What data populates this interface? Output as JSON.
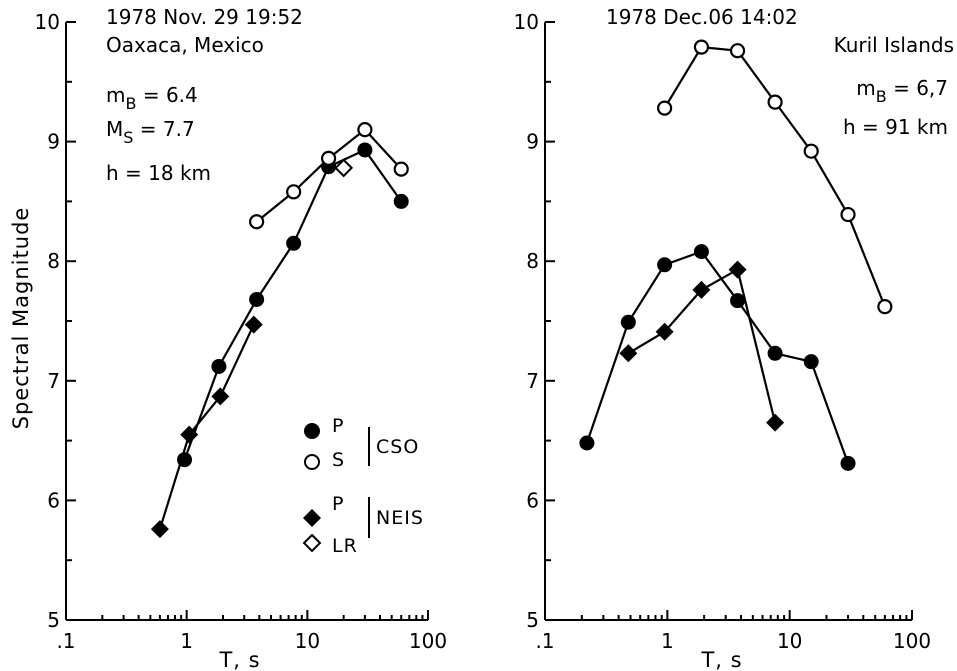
{
  "colors": {
    "ink": "#000000",
    "paper": "#ffffff"
  },
  "chart_data": [
    {
      "type": "scatter",
      "panel": "left",
      "xscale": "log",
      "xlim": [
        0.1,
        100
      ],
      "ylim": [
        5,
        10
      ],
      "xticks": [
        ".1",
        "1",
        "10",
        "100"
      ],
      "yticks": [
        "5",
        "6",
        "7",
        "8",
        "9",
        "10"
      ],
      "xlabel": "T, s",
      "ylabel": "Spectral Magnitude",
      "grid": false,
      "legend_position": "center-right",
      "annotations": [
        "1978 Nov. 29 19:52",
        "Oaxaca, Mexico",
        "h = 18 km"
      ],
      "mb_text": "m",
      "mb_sub": "B",
      "mb_val": " = 6.4",
      "ms_text": "M",
      "ms_sub": "S",
      "ms_val": " = 7.7",
      "legend": {
        "p_cso": "P",
        "s_cso": "S",
        "cso": "CSO",
        "p_neis": "P",
        "lr_neis": "LR",
        "neis": "NEIS"
      },
      "series": [
        {
          "name": "P",
          "marker": "filled-circle",
          "group": "CSO",
          "x": [
            0.96,
            1.85,
            3.8,
            7.7,
            15,
            30,
            60
          ],
          "y": [
            6.34,
            7.12,
            7.68,
            8.15,
            8.79,
            8.93,
            8.5
          ]
        },
        {
          "name": "S",
          "marker": "open-circle",
          "group": "CSO",
          "x": [
            3.8,
            7.7,
            15,
            30,
            60
          ],
          "y": [
            8.33,
            8.58,
            8.86,
            9.1,
            8.77
          ]
        },
        {
          "name": "P",
          "marker": "filled-diamond",
          "group": "NEIS",
          "x": [
            0.6,
            1.05,
            1.9,
            3.6
          ],
          "y": [
            5.76,
            6.55,
            6.87,
            7.47
          ]
        },
        {
          "name": "LR",
          "marker": "open-diamond",
          "group": "NEIS",
          "x": [
            20
          ],
          "y": [
            8.78
          ]
        }
      ]
    },
    {
      "type": "scatter",
      "panel": "right",
      "xscale": "log",
      "xlim": [
        0.1,
        100
      ],
      "ylim": [
        5,
        10
      ],
      "xticks": [
        ".1",
        "1",
        "10",
        "100"
      ],
      "yticks": [
        "5",
        "6",
        "7",
        "8",
        "9",
        "10"
      ],
      "xlabel": "T, s",
      "ylabel": "",
      "grid": false,
      "annotations": [
        "1978 Dec.06 14:02",
        "Kuril Islands",
        "h = 91 km"
      ],
      "mb_text": "m",
      "mb_sub": "B",
      "mb_val": " = 6,7",
      "series": [
        {
          "name": "S",
          "marker": "open-circle",
          "x": [
            0.95,
            1.9,
            3.75,
            7.6,
            15,
            30,
            60
          ],
          "y": [
            9.28,
            9.79,
            9.76,
            9.33,
            8.92,
            8.39,
            7.62
          ]
        },
        {
          "name": "P",
          "marker": "filled-circle",
          "x": [
            0.22,
            0.48,
            0.95,
            1.9,
            3.75,
            7.6,
            15,
            30
          ],
          "y": [
            6.48,
            7.49,
            7.97,
            8.08,
            7.67,
            7.23,
            7.16,
            6.31
          ]
        },
        {
          "name": "P NEIS",
          "marker": "filled-diamond",
          "x": [
            0.48,
            0.95,
            1.9,
            3.75,
            7.6
          ],
          "y": [
            7.23,
            7.41,
            7.76,
            7.93,
            6.65
          ]
        }
      ]
    }
  ]
}
